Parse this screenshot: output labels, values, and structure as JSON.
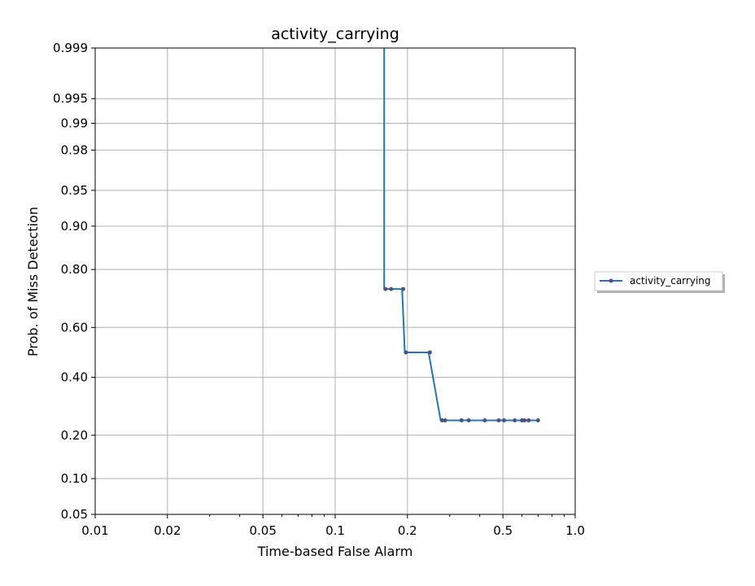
{
  "chart_data": {
    "type": "line",
    "title": "activity_carrying",
    "xlabel": "Time-based False Alarm",
    "ylabel": "Prob. of Miss Detection",
    "x_scale": "log",
    "y_scale": "normal-deviate",
    "xlim": [
      0.01,
      1.0
    ],
    "ylim": [
      0.05,
      0.999
    ],
    "x_ticks": [
      0.01,
      0.02,
      0.05,
      0.1,
      0.2,
      0.5,
      1.0
    ],
    "x_tick_labels": [
      "0.01",
      "0.02",
      "0.05",
      "0.1",
      "0.2",
      "0.5",
      "1.0"
    ],
    "y_ticks": [
      0.05,
      0.1,
      0.2,
      0.4,
      0.6,
      0.8,
      0.9,
      0.95,
      0.98,
      0.99,
      0.995,
      0.999
    ],
    "y_tick_labels": [
      "0.05",
      "0.10",
      "0.20",
      "0.40",
      "0.60",
      "0.80",
      "0.90",
      "0.95",
      "0.98",
      "0.99",
      "0.995",
      "0.999"
    ],
    "grid": true,
    "legend_position": "outside-right",
    "series": [
      {
        "name": "activity_carrying",
        "color": "#1f77b4",
        "marker_color": "#4b4f8c",
        "line_x": [
          0.16,
          0.16,
          0.19,
          0.195,
          0.245,
          0.275,
          0.7
        ],
        "line_y": [
          0.999,
          0.74,
          0.74,
          0.5,
          0.5,
          0.245,
          0.245
        ],
        "x": [
          0.162,
          0.171,
          0.192,
          0.197,
          0.248,
          0.279,
          0.287,
          0.336,
          0.36,
          0.42,
          0.48,
          0.505,
          0.56,
          0.6,
          0.615,
          0.64,
          0.7
        ],
        "y": [
          0.74,
          0.74,
          0.74,
          0.5,
          0.5,
          0.245,
          0.245,
          0.245,
          0.245,
          0.245,
          0.245,
          0.245,
          0.245,
          0.245,
          0.245,
          0.245,
          0.245
        ]
      }
    ]
  }
}
